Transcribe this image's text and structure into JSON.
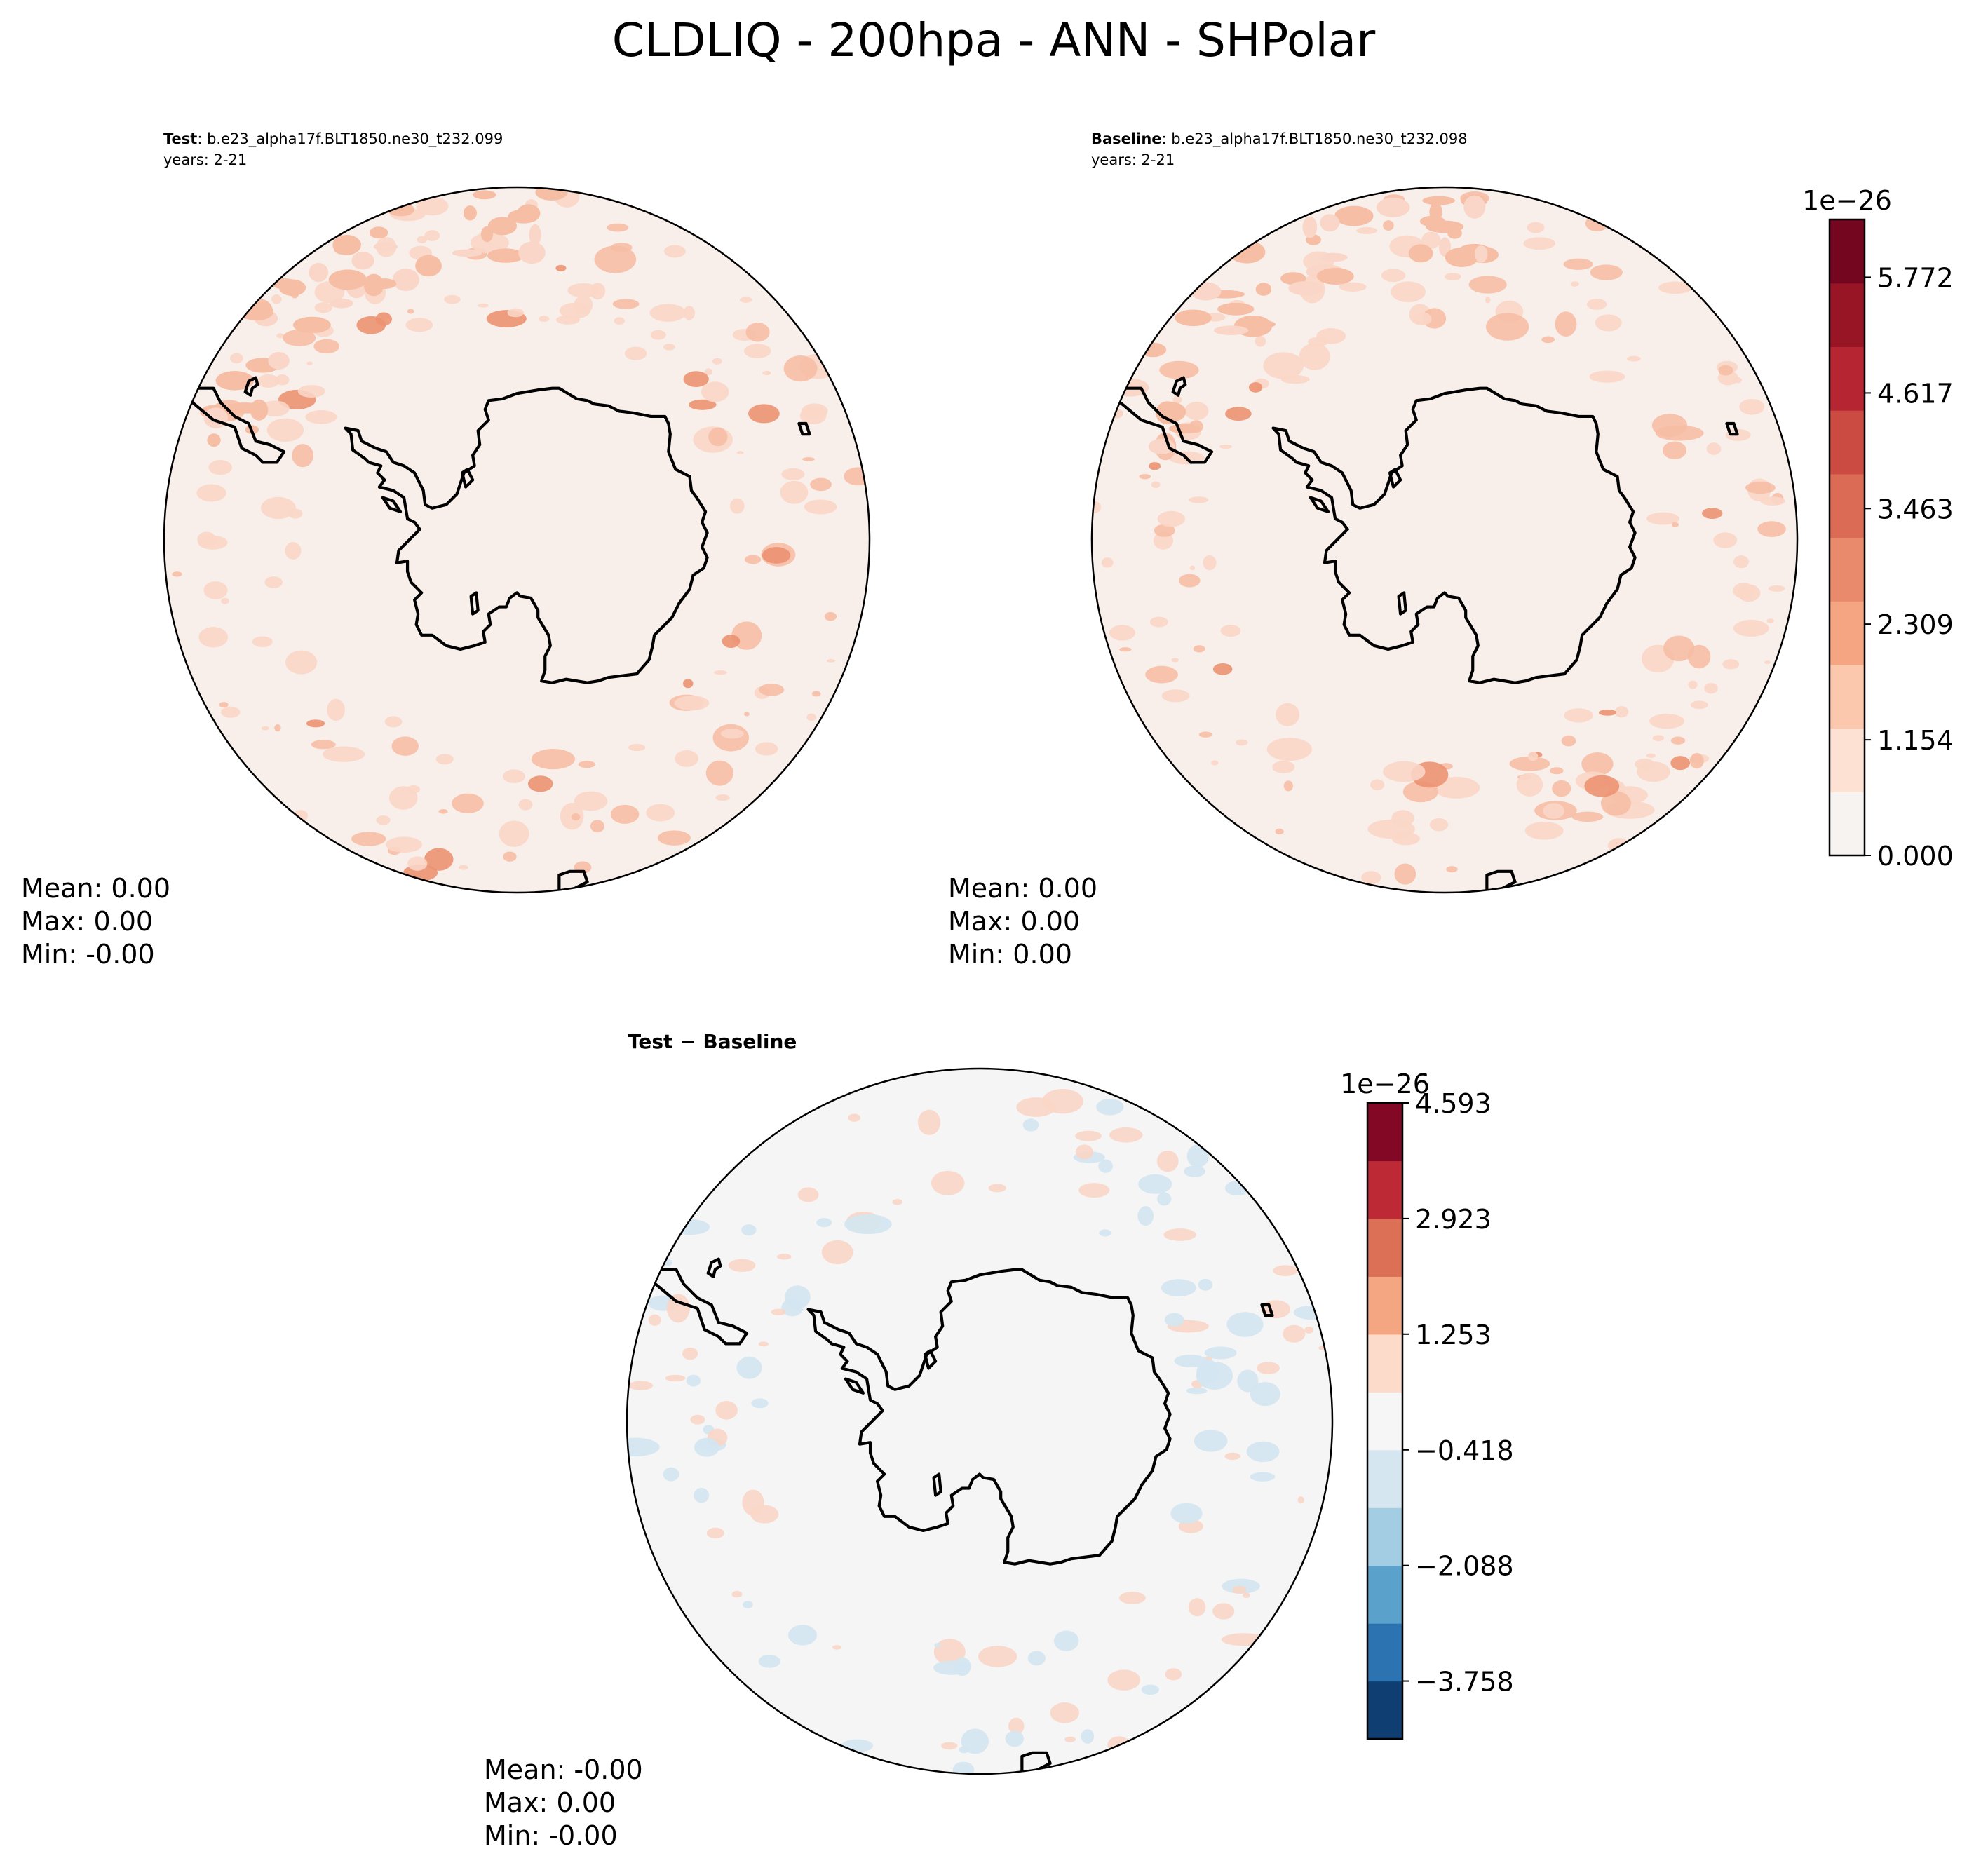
{
  "title": "CLDLIQ - 200hpa - ANN - SHPolar",
  "panels": [
    {
      "label_bold": "Test",
      "label_rest": ": b.e23_alpha17f.BLT1850.ne30_t232.099",
      "years": "years: 2-21",
      "stats": {
        "mean": "Mean:  0.00",
        "max": "Max:  0.00",
        "min": "Min: -0.00"
      },
      "background_color": "#f8efeb"
    },
    {
      "label_bold": "Baseline",
      "label_rest": ": b.e23_alpha17f.BLT1850.ne30_t232.098",
      "years": "years: 2-21",
      "stats": {
        "mean": "Mean:  0.00",
        "max": "Max:  0.00",
        "min": "Min:  0.00"
      },
      "background_color": "#f8efeb"
    },
    {
      "label_bold": "Test − Baseline",
      "label_rest": "",
      "years": "",
      "stats": {
        "mean": "Mean: -0.00",
        "max": "Max:  0.00",
        "min": "Min: -0.00"
      },
      "background_color": "#f5f5f5"
    }
  ],
  "colorbars": {
    "main": {
      "exponent": "1e−26",
      "ticks": [
        "0.000",
        "1.154",
        "2.309",
        "3.463",
        "4.617",
        "5.772"
      ],
      "tick_values": [
        0.0,
        1.154,
        2.309,
        3.463,
        4.617,
        5.772
      ],
      "range": [
        0.0,
        6.349
      ],
      "colors": [
        "#f7f3f1",
        "#fde1d3",
        "#fbc8ae",
        "#f6a582",
        "#ea8a6c",
        "#db6b55",
        "#cb4b43",
        "#b52532",
        "#981526",
        "#74071f"
      ]
    },
    "diff": {
      "exponent": "1e−26",
      "ticks": [
        "4.593",
        "2.923",
        "1.253",
        "−0.418",
        "−2.088",
        "−3.758"
      ],
      "tick_values": [
        4.593,
        2.923,
        1.253,
        -0.418,
        -2.088,
        -3.758
      ],
      "range": [
        -4.593,
        4.593
      ],
      "colors": [
        "#0f3f72",
        "#2b73b1",
        "#5aa2cc",
        "#a2cde3",
        "#d6e6f1",
        "#f7f6f6",
        "#fcdbca",
        "#f4a682",
        "#db7057",
        "#bd2a35",
        "#830826"
      ]
    }
  },
  "colors": {
    "coast": "#000000",
    "spot_light": "#f9d6c7",
    "spot_mid": "#f6bea5",
    "spot_dark": "#ec9272",
    "spot_blue": "#d3e5f1",
    "spot_blue_dark": "#2c6aa8"
  }
}
